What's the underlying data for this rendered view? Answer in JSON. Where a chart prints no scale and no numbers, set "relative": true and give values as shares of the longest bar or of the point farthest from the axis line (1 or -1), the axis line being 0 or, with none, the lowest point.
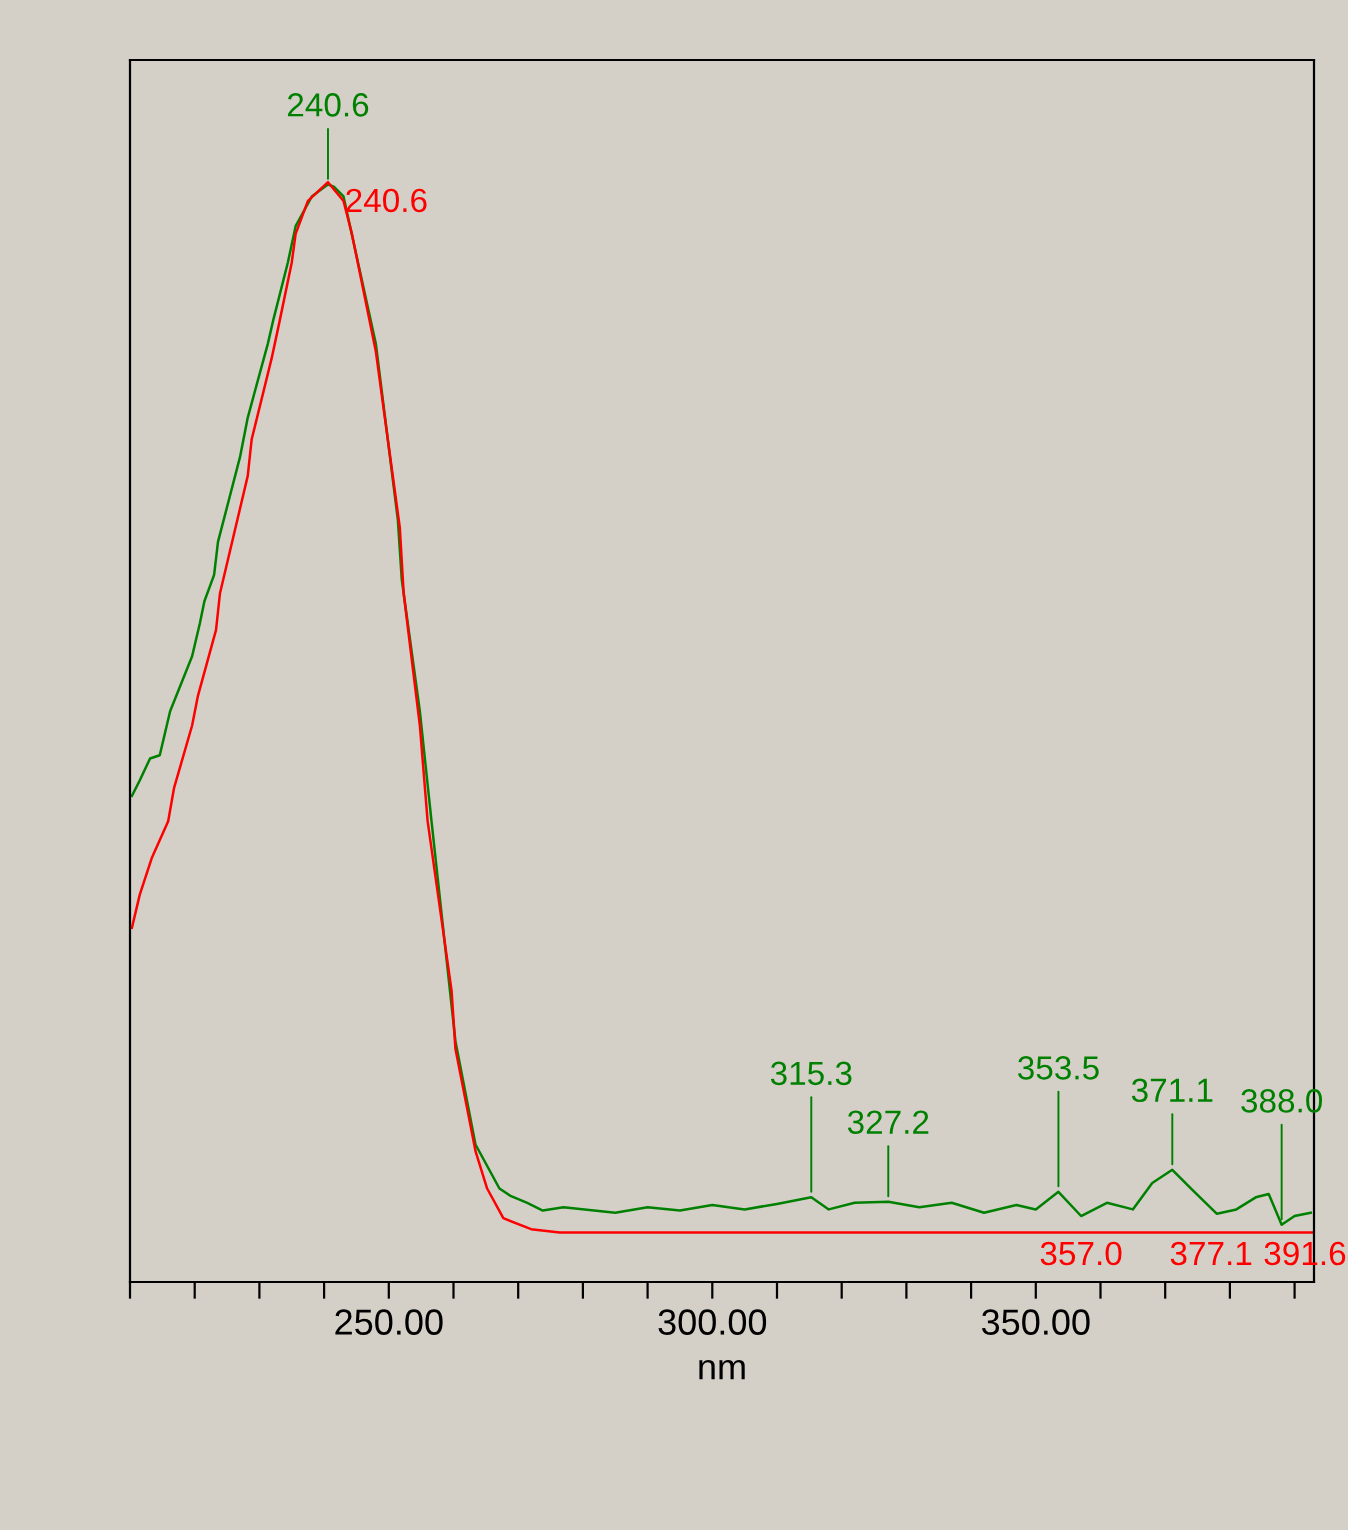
{
  "chart_data": {
    "type": "line",
    "relative": true,
    "xlabel": "nm",
    "xlim": [
      210,
      393
    ],
    "xticks": [
      {
        "value": 210,
        "label": null
      },
      {
        "value": 220,
        "label": null
      },
      {
        "value": 230,
        "label": null
      },
      {
        "value": 240,
        "label": null
      },
      {
        "value": 250,
        "label": "250.00"
      },
      {
        "value": 260,
        "label": null
      },
      {
        "value": 270,
        "label": null
      },
      {
        "value": 280,
        "label": null
      },
      {
        "value": 290,
        "label": null
      },
      {
        "value": 300,
        "label": "300.00"
      },
      {
        "value": 310,
        "label": null
      },
      {
        "value": 320,
        "label": null
      },
      {
        "value": 330,
        "label": null
      },
      {
        "value": 340,
        "label": null
      },
      {
        "value": 350,
        "label": "350.00"
      },
      {
        "value": 360,
        "label": null
      },
      {
        "value": 370,
        "label": null
      },
      {
        "value": 380,
        "label": null
      },
      {
        "value": 390,
        "label": null
      }
    ],
    "grid": false,
    "legend": false,
    "marker": "none",
    "line_style": "solid",
    "series": [
      {
        "color": "#008000",
        "x": [
          210.3,
          211.5,
          213.1,
          214.6,
          216.2,
          219.6,
          220.8,
          221.5,
          223.0,
          223.6,
          227.0,
          228.2,
          231.3,
          232.2,
          234.4,
          235.6,
          238.1,
          239.9,
          240.6,
          241.5,
          243.0,
          248.0,
          251.4,
          252.0,
          254.8,
          256.6,
          260.3,
          263.4,
          267.1,
          268.9,
          271.4,
          273.8,
          277.0,
          285,
          290,
          295,
          300,
          305,
          310,
          315.3,
          318,
          322,
          327.2,
          332,
          337,
          342,
          347,
          350,
          353.5,
          357,
          361,
          365,
          368,
          371.1,
          374,
          378,
          381,
          384,
          386,
          388.0,
          390,
          392.5
        ],
        "values": [
          0.442,
          0.456,
          0.476,
          0.479,
          0.519,
          0.569,
          0.599,
          0.619,
          0.643,
          0.673,
          0.75,
          0.786,
          0.853,
          0.876,
          0.927,
          0.96,
          0.987,
          0.995,
          0.998,
          0.996,
          0.987,
          0.853,
          0.693,
          0.639,
          0.519,
          0.419,
          0.219,
          0.125,
          0.085,
          0.078,
          0.072,
          0.065,
          0.068,
          0.063,
          0.068,
          0.065,
          0.07,
          0.066,
          0.071,
          0.077,
          0.066,
          0.072,
          0.073,
          0.068,
          0.072,
          0.063,
          0.07,
          0.066,
          0.082,
          0.06,
          0.072,
          0.066,
          0.09,
          0.102,
          0.085,
          0.062,
          0.066,
          0.077,
          0.08,
          0.052,
          0.06,
          0.063
        ]
      },
      {
        "color": "#ff0000",
        "x": [
          210.3,
          211.5,
          213.4,
          215.9,
          216.8,
          219.6,
          220.5,
          223.3,
          223.9,
          228.2,
          228.8,
          231.9,
          233.1,
          235.0,
          235.6,
          237.5,
          240.6,
          243.0,
          244.3,
          248.0,
          251.7,
          252.3,
          254.8,
          256.0,
          259.7,
          260.3,
          263.4,
          265.2,
          267.7,
          272.0,
          276.4,
          300,
          357.0,
          377.1,
          391.6,
          393
        ],
        "values": [
          0.322,
          0.352,
          0.386,
          0.419,
          0.449,
          0.506,
          0.533,
          0.593,
          0.626,
          0.733,
          0.766,
          0.84,
          0.873,
          0.927,
          0.953,
          0.983,
          1.0,
          0.983,
          0.953,
          0.846,
          0.686,
          0.626,
          0.506,
          0.419,
          0.265,
          0.212,
          0.119,
          0.085,
          0.058,
          0.048,
          0.045,
          0.045,
          0.045,
          0.045,
          0.045,
          0.045
        ]
      }
    ],
    "annotations": [
      {
        "text": "240.6",
        "x": 240.6,
        "y": 1.0
      },
      {
        "text": "240.6",
        "x": 240.6,
        "y": 0.998
      },
      {
        "text": "315.3",
        "x": 315.3,
        "y": 0.077
      },
      {
        "text": "327.2",
        "x": 327.2,
        "y": 0.073
      },
      {
        "text": "353.5",
        "x": 353.5,
        "y": 0.082
      },
      {
        "text": "371.1",
        "x": 371.1,
        "y": 0.102
      },
      {
        "text": "388.0",
        "x": 388.0,
        "y": 0.052
      },
      {
        "text": "357.0",
        "x": 357.0,
        "y": 0.045
      },
      {
        "text": "377.1",
        "x": 377.1,
        "y": 0.045
      },
      {
        "text": "391.6",
        "x": 391.6,
        "y": 0.045
      }
    ]
  }
}
